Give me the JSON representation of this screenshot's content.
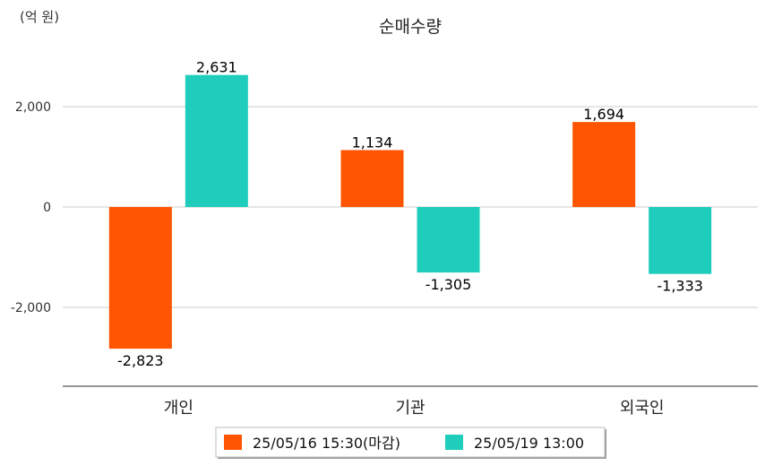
{
  "chart_data": {
    "type": "bar",
    "title": "순매수량",
    "unit_label": "(억 원)",
    "categories": [
      "개인",
      "기관",
      "외국인"
    ],
    "series": [
      {
        "name": "25/05/16 15:30(마감)",
        "color": "#FF5500",
        "values": [
          -2823,
          1134,
          1694
        ],
        "value_labels": [
          "-2,823",
          "1,134",
          "1,694"
        ]
      },
      {
        "name": "25/05/19 13:00",
        "color": "#1ECDBB",
        "values": [
          2631,
          -1305,
          -1333
        ],
        "value_labels": [
          "2,631",
          "-1,305",
          "-1,333"
        ]
      }
    ],
    "y_ticks": [
      {
        "value": 2000,
        "label": "2,000"
      },
      {
        "value": 0,
        "label": "0"
      },
      {
        "value": -2000,
        "label": "-2,000"
      }
    ],
    "ylim": [
      -3500,
      3000
    ],
    "grid": true,
    "legend_position": "bottom"
  }
}
